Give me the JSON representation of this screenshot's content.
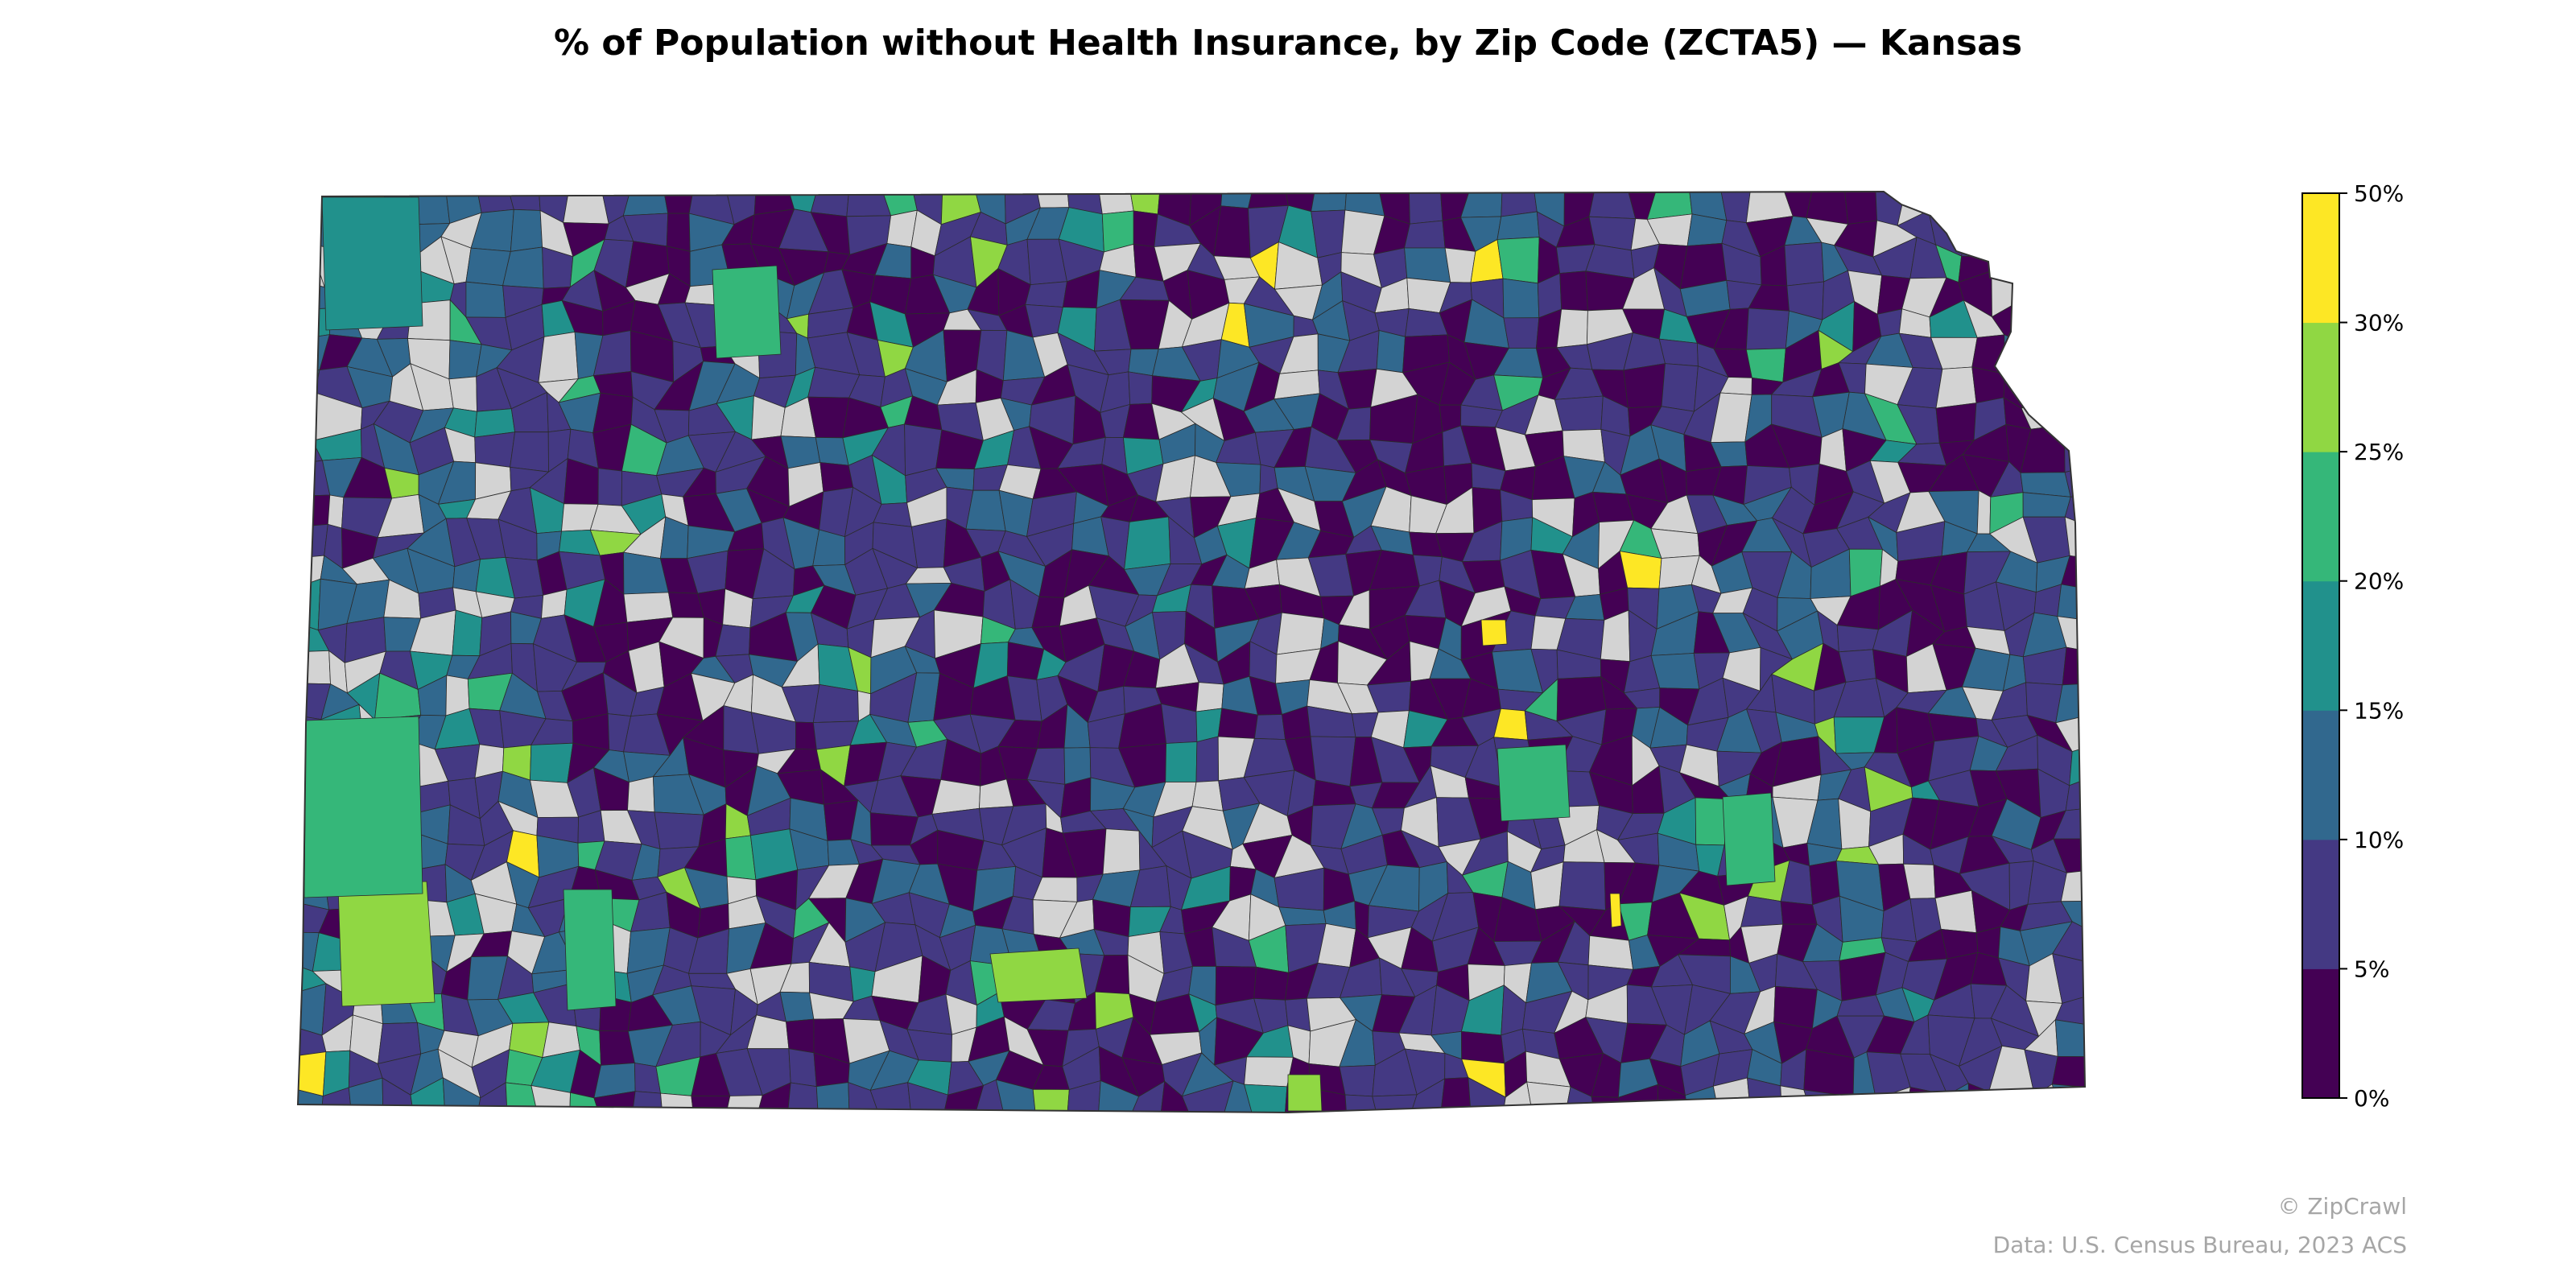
{
  "title": "% of Population without Health Insurance, by Zip Code (ZCTA5) — Kansas",
  "map": {
    "region": "Kansas",
    "unit": "ZCTA5",
    "no_data_color": "#d3d3d3",
    "border_color": "#2b2b2b"
  },
  "legend": {
    "bins": [
      {
        "label": "0%",
        "from": 0,
        "to": 5,
        "color": "#440154"
      },
      {
        "label": "5%",
        "from": 5,
        "to": 10,
        "color": "#443983"
      },
      {
        "label": "10%",
        "from": 10,
        "to": 15,
        "color": "#31688e"
      },
      {
        "label": "15%",
        "from": 15,
        "to": 20,
        "color": "#21918c"
      },
      {
        "label": "20%",
        "from": 20,
        "to": 25,
        "color": "#35b779"
      },
      {
        "label": "25%",
        "from": 25,
        "to": 30,
        "color": "#90d743"
      },
      {
        "label": "30%",
        "from": 30,
        "to": 50,
        "color": "#fde725"
      }
    ],
    "top_label": "50%"
  },
  "credits": {
    "brand": "© ZipCrawl",
    "source": "Data: U.S. Census Bureau, 2023 ACS"
  }
}
